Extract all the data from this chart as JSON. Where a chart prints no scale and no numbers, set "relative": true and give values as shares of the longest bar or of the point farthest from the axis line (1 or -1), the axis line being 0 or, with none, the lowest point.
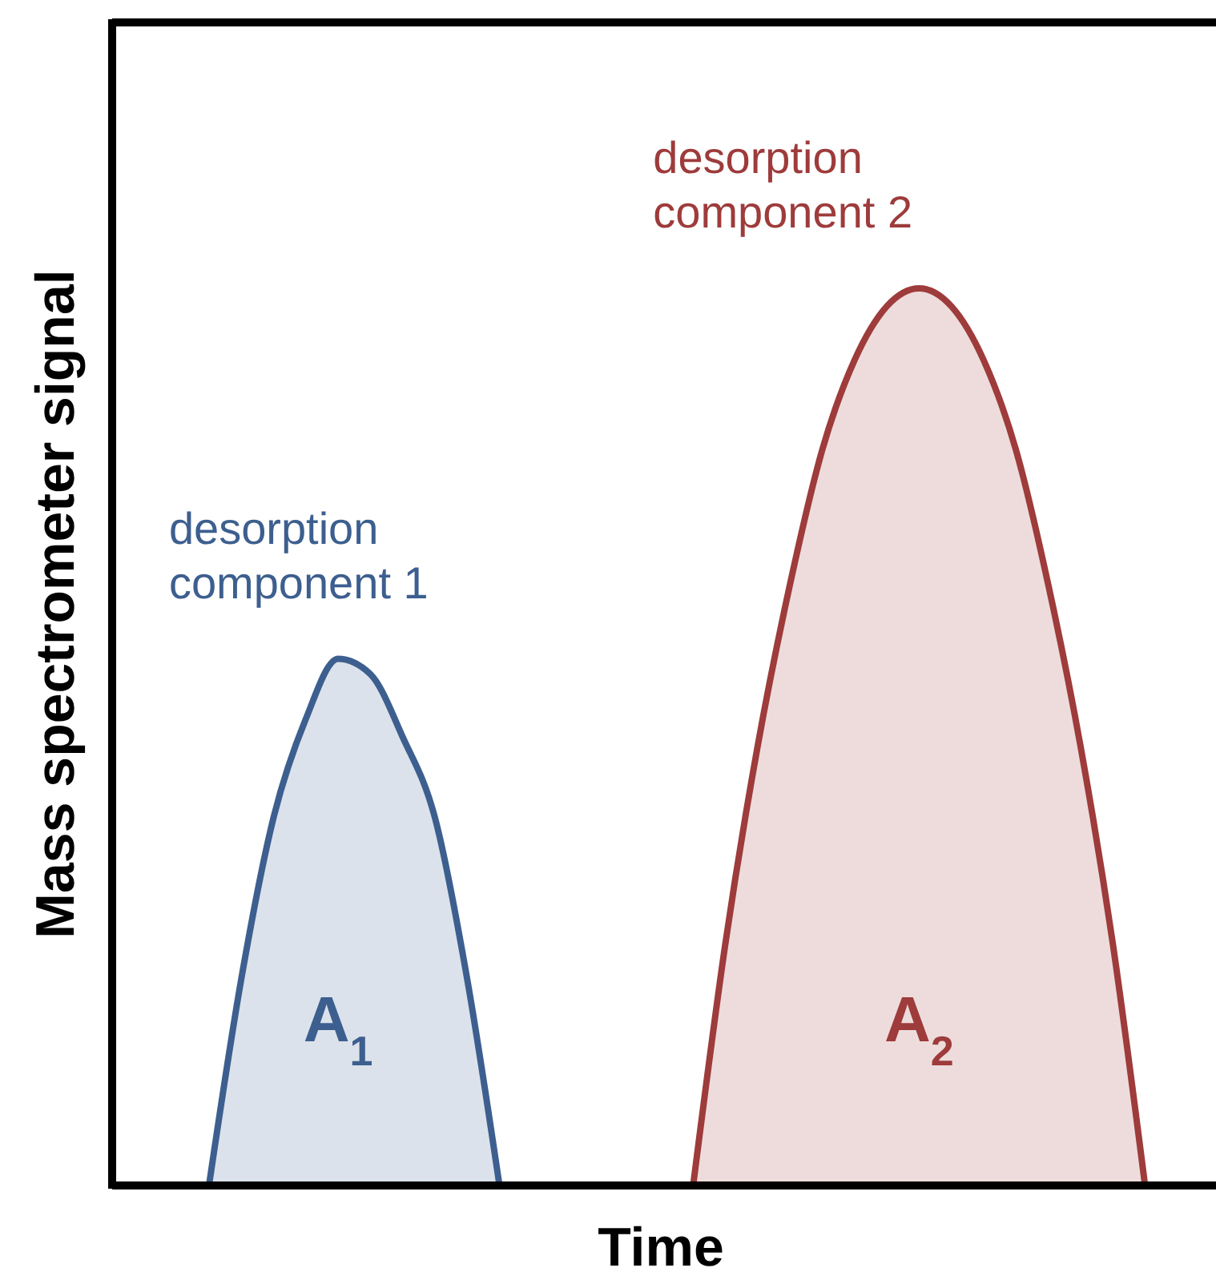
{
  "chart_data": {
    "type": "area",
    "relative": true,
    "xlabel": "Time",
    "ylabel": "Mass spectrometer signal",
    "categories": [
      null,
      null,
      null,
      null,
      null,
      null,
      null,
      null,
      null,
      null,
      null,
      null,
      null,
      null,
      null,
      null,
      null,
      null,
      null,
      null,
      null,
      null,
      null,
      null,
      null,
      null,
      null,
      null,
      null,
      null,
      null,
      null,
      null,
      null,
      null
    ],
    "series": [
      {
        "name": "desorption component 1",
        "color": "#3d5f8f",
        "values": [
          null,
          null,
          null,
          0,
          0.23,
          0.41,
          0.52,
          0.587,
          0.57,
          0.5,
          0.41,
          0.23,
          0,
          null,
          null,
          null,
          null,
          null,
          null,
          null,
          null,
          null,
          null,
          null,
          null,
          null,
          null,
          null,
          null,
          null,
          null,
          null,
          null,
          null,
          null
        ]
      },
      {
        "name": "desorption component 2",
        "color": "#9e3b3b",
        "values": [
          null,
          null,
          null,
          null,
          null,
          null,
          null,
          null,
          null,
          null,
          null,
          null,
          null,
          null,
          null,
          null,
          null,
          null,
          0,
          0.27,
          0.49,
          0.67,
          0.82,
          0.92,
          0.98,
          1,
          0.98,
          0.92,
          0.82,
          0.67,
          0.49,
          0.27,
          0,
          null,
          null
        ]
      }
    ],
    "annotations": [
      "A$_{1}$",
      "A$_{2}$"
    ]
  }
}
